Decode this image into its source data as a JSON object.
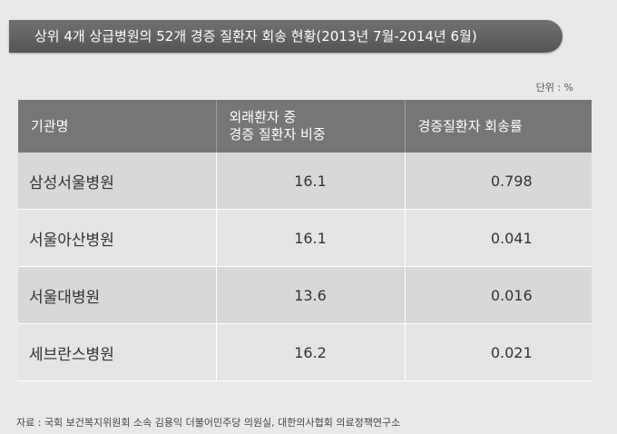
{
  "title": "상위 4개 상급병원의 52개 경증 질환자 회송 현황(2013년 7월-2014년 6월)",
  "unit": "단위 : %",
  "table": {
    "headers": [
      "기관명",
      "외래환자 중\n경증 질환자 비중",
      "경증질환자 회송률"
    ],
    "rows": [
      [
        "삼성서울병원",
        "16.1",
        "0.798"
      ],
      [
        "서울아산병원",
        "16.1",
        "0.041"
      ],
      [
        "서울대병원",
        "13.6",
        "0.016"
      ],
      [
        "세브란스병원",
        "16.2",
        "0.021"
      ]
    ]
  },
  "source": "자료 : 국회 보건복지위원회 소속 김용익 더불어민주당 의원실, 대한의사협회 의료정책연구소"
}
